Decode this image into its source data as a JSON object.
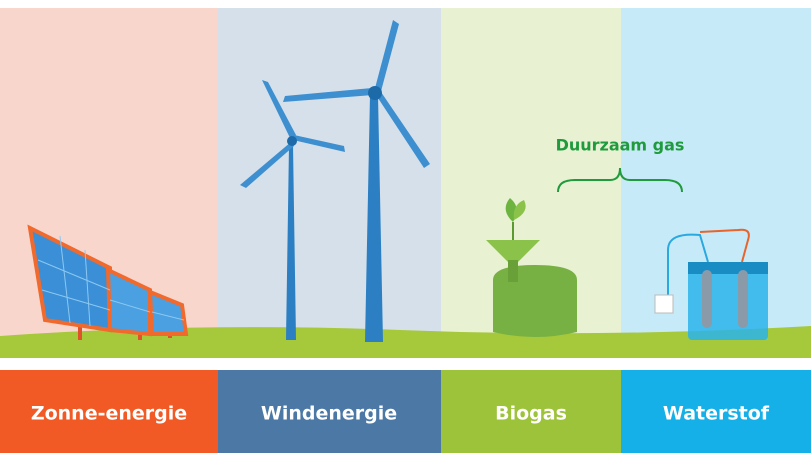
{
  "illustration": {
    "annotation": "Duurzaam gas"
  },
  "categories": [
    "Zonne-energie",
    "Windenergie",
    "Biogas",
    "Waterstof"
  ]
}
